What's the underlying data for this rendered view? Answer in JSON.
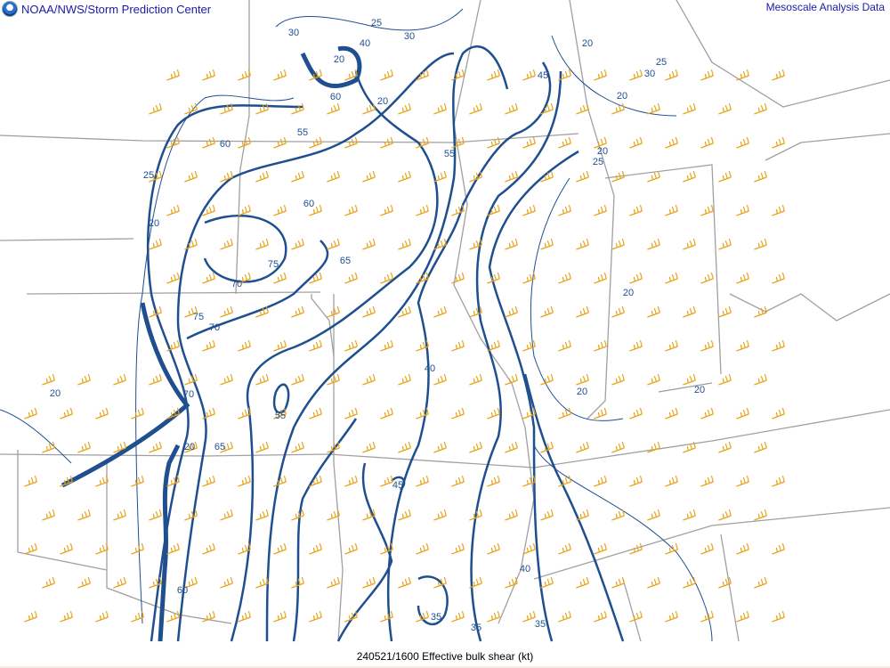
{
  "header": {
    "left_title": "NOAA/NWS/Storm Prediction Center",
    "right_title": "Mesoscale Analysis Data",
    "logo": "noaa-logo"
  },
  "footer": {
    "caption": "240521/1600 Effective bulk shear (kt)"
  },
  "map": {
    "field": "Effective bulk shear",
    "units": "kt",
    "contour_color": "#1f4f8f",
    "barb_color": "#e8a317",
    "boundary_color": "#a0a0a0",
    "contour_labels": [
      "30",
      "25",
      "30",
      "40",
      "20",
      "60",
      "20",
      "45",
      "20",
      "25",
      "30",
      "60",
      "55",
      "55",
      "25",
      "60",
      "20",
      "75",
      "65",
      "70",
      "75",
      "70",
      "40",
      "20",
      "70",
      "55",
      "65",
      "20",
      "45",
      "60",
      "40",
      "35",
      "35",
      "35",
      "20",
      "20",
      "20",
      "20",
      "25",
      "20"
    ]
  }
}
